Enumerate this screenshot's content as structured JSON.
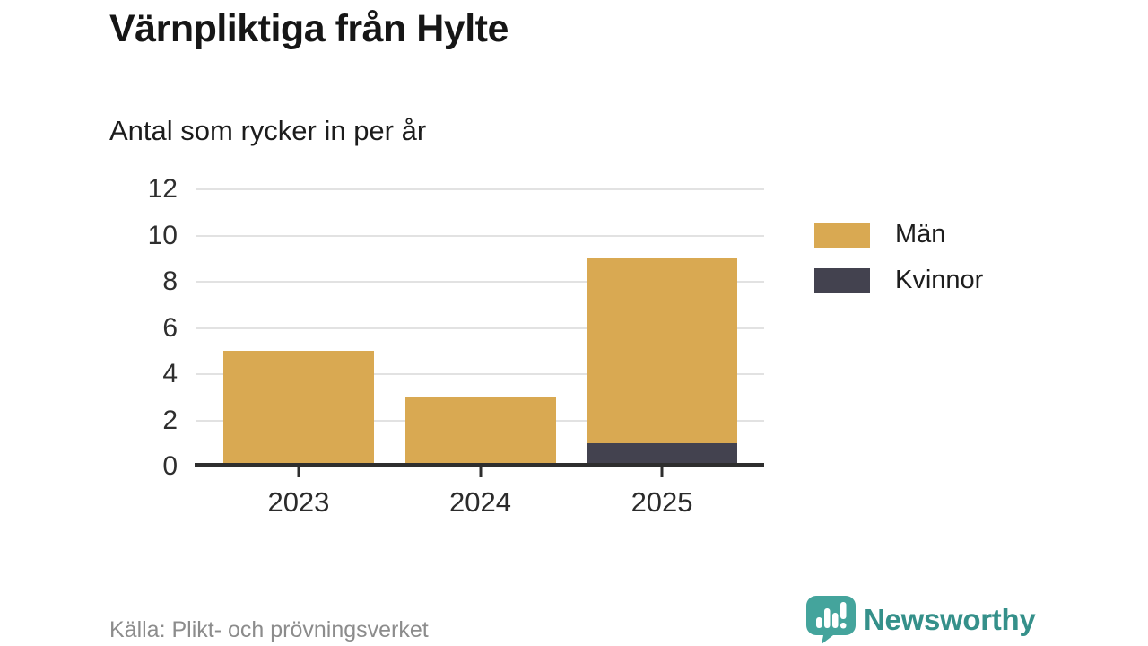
{
  "chart_data": {
    "type": "bar",
    "stacked": true,
    "title": "Värnpliktiga från Hylte",
    "subtitle": "Antal som rycker in per år",
    "categories": [
      "2023",
      "2024",
      "2025"
    ],
    "series": [
      {
        "name": "Män",
        "color": "#D9A952",
        "values": [
          5,
          3,
          8
        ]
      },
      {
        "name": "Kvinnor",
        "color": "#43424F",
        "values": [
          0,
          0,
          1
        ]
      }
    ],
    "stack_order_bottom_to_top": [
      "Kvinnor",
      "Män"
    ],
    "stack_totals": [
      5,
      3,
      9
    ],
    "ylim": [
      0,
      12
    ],
    "yticks": [
      0,
      2,
      4,
      6,
      8,
      10,
      12
    ],
    "grid": true,
    "legend_position": "right",
    "colors": {
      "grid_line": "#E2E2E2",
      "axis_line": "#2E2E2E",
      "tick_text": "#2E2E2E"
    }
  },
  "footer": {
    "source": "Källa: Plikt- och prövningsverket",
    "brand": "Newsworthy",
    "brand_color": "#35908A",
    "brand_icon_color": "#44A49C"
  }
}
